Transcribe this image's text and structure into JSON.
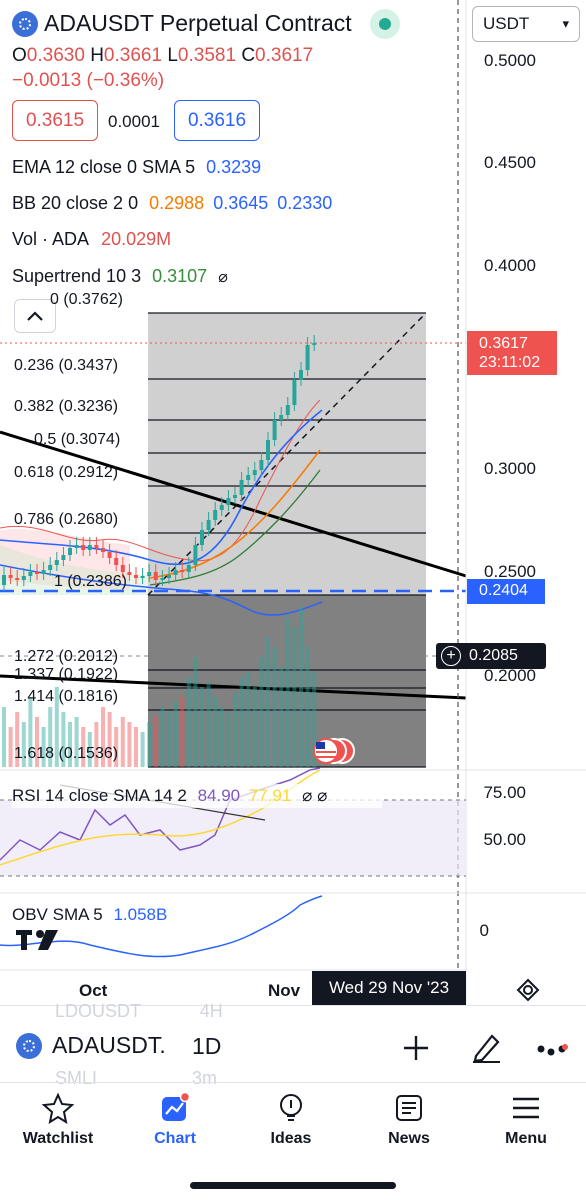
{
  "header": {
    "symbol_title": "ADAUSDT Perpetual Contract",
    "currency": "USDT",
    "ohlc": {
      "o_label": "O",
      "o": "0.3630",
      "h_label": "H",
      "h": "0.3661",
      "l_label": "L",
      "l": "0.3581",
      "c_label": "C",
      "c": "0.3617"
    },
    "change": "−0.0013 (−0.36%)",
    "bid": "0.3615",
    "spread": "0.0001",
    "ask": "0.3616"
  },
  "indicators": {
    "ema": {
      "label": "EMA 12 close 0 SMA 5",
      "value": "0.3239"
    },
    "bb": {
      "label": "BB 20 close 2 0",
      "basis": "0.2988",
      "upper": "0.3645",
      "lower": "0.2330"
    },
    "vol": {
      "label": "Vol · ADA",
      "value": "20.029M"
    },
    "supertrend": {
      "label": "Supertrend 10 3",
      "value": "0.3107"
    }
  },
  "price_scale": {
    "ticks": [
      "0.5000",
      "0.4500",
      "0.4000",
      "0.3000",
      "0.2500",
      "0.2000"
    ],
    "current_price": "0.3617",
    "countdown": "23:11:02",
    "line_price": "0.2404",
    "crosshair_price": "0.2085"
  },
  "fib_levels": [
    {
      "label": "0 (0.3762)"
    },
    {
      "label": "0.236 (0.3437)"
    },
    {
      "label": "0.382 (0.3236)"
    },
    {
      "label": "0.5 (0.3074)"
    },
    {
      "label": "0.618 (0.2912)"
    },
    {
      "label": "0.786 (0.2680)"
    },
    {
      "label": "1 (0.2386)"
    },
    {
      "label": "1.272 (0.2012)"
    },
    {
      "label": "1.337 (0.1922)"
    },
    {
      "label": "1.414 (0.1816)"
    },
    {
      "label": "1.618 (0.1536)"
    }
  ],
  "rsi": {
    "label": "RSI 14 close SMA 14 2",
    "value1": "84.90",
    "value2": "77.91",
    "scale_hi": "75.00",
    "scale_lo": "50.00"
  },
  "obv": {
    "label": "OBV SMA 5",
    "value": "1.058B",
    "scale_zero": "0"
  },
  "time_axis": {
    "oct": "Oct",
    "nov": "Nov",
    "crosshair_date": "Wed 29 Nov '23"
  },
  "bottom_bar": {
    "symbol": "ADAUSDT.",
    "interval": "1D",
    "ghost_above": "LDOUSDT",
    "ghost_above_interval": "4H",
    "ghost_below": "SMLI",
    "ghost_below_interval": "3m"
  },
  "tabs": [
    {
      "label": "Watchlist"
    },
    {
      "label": "Chart"
    },
    {
      "label": "Ideas"
    },
    {
      "label": "News"
    },
    {
      "label": "Menu"
    }
  ],
  "colors": {
    "up": "#26a69a",
    "down": "#ef5350",
    "accent": "#2962ff",
    "price_badge": "#ef5350"
  }
}
